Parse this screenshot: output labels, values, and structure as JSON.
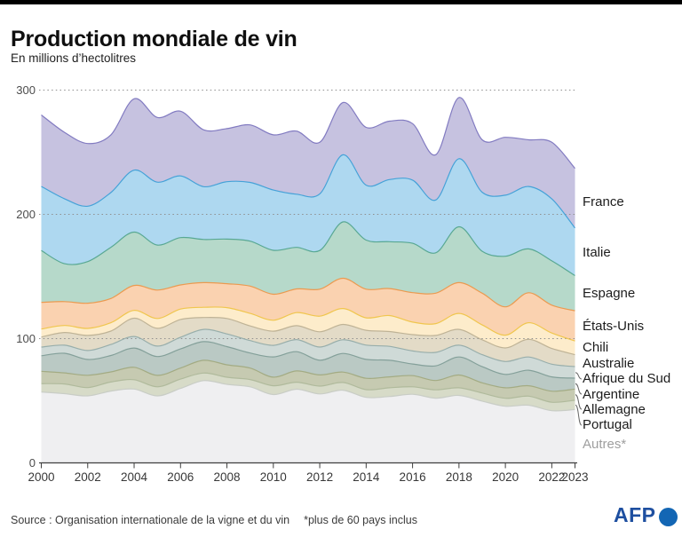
{
  "page": {
    "title": "Production mondiale de vin",
    "subtitle": "En millions d’hectolitres"
  },
  "footer": {
    "source": "Source : Organisation internationale de la vigne et du vin",
    "note": "*plus de 60 pays inclus",
    "brand": "AFP"
  },
  "colors": {
    "afp_text": "#1e4fa0",
    "afp_circle": "#1366b4",
    "grid_dotted": "#8f8f8f",
    "axis": "#3f3f3f",
    "muted_label": "#9e9e9e"
  },
  "chart_data": {
    "type": "area",
    "stacked": true,
    "title": "Production mondiale de vin",
    "ylabel": "En millions d’hectolitres",
    "ylim": [
      0,
      300
    ],
    "yticks": [
      0,
      100,
      200,
      300
    ],
    "grid": "dotted horizontal at 100/200/300",
    "legend_position": "right edge labels",
    "x": [
      2000,
      2001,
      2002,
      2003,
      2004,
      2005,
      2006,
      2007,
      2008,
      2009,
      2010,
      2011,
      2012,
      2013,
      2014,
      2015,
      2016,
      2017,
      2018,
      2019,
      2020,
      2021,
      2022,
      2023
    ],
    "x_tick_labels": [
      2000,
      2002,
      2004,
      2006,
      2008,
      2010,
      2012,
      2014,
      2016,
      2018,
      2020,
      2022,
      2023
    ],
    "series_order_note": "listed top-to-bottom as labeled; stacking is bottom-to-top (reverse)",
    "series": [
      {
        "name": "France",
        "fill": "#c6c2e0",
        "stroke": "#827bc1",
        "values": [
          57.5,
          53.4,
          50.4,
          46.4,
          57.4,
          52.1,
          52.1,
          45.7,
          42.7,
          46.3,
          44.4,
          50.8,
          41.5,
          42.1,
          46.5,
          47.0,
          45.4,
          36.4,
          49.2,
          42.2,
          46.6,
          37.6,
          45.6,
          48.0
        ]
      },
      {
        "name": "Italie",
        "fill": "#aed8f0",
        "stroke": "#45a2d8",
        "values": [
          51.6,
          52.3,
          44.6,
          44.1,
          49.9,
          50.6,
          49.6,
          42.5,
          46.2,
          47.3,
          48.5,
          42.8,
          45.6,
          54.0,
          44.2,
          50.0,
          50.9,
          42.5,
          54.8,
          47.5,
          49.1,
          50.2,
          49.8,
          38.3
        ]
      },
      {
        "name": "Espagne",
        "fill": "#b6d9ca",
        "stroke": "#58a893",
        "values": [
          41.7,
          30.5,
          33.5,
          41.2,
          42.9,
          36.2,
          38.1,
          34.7,
          35.9,
          36.1,
          35.4,
          33.4,
          31.1,
          45.3,
          39.5,
          37.7,
          39.7,
          32.5,
          44.9,
          33.7,
          40.7,
          35.3,
          35.7,
          28.3
        ]
      },
      {
        "name": "États-Unis",
        "fill": "#fad2b0",
        "stroke": "#eb9a50",
        "values": [
          21.5,
          19.2,
          20.3,
          19.5,
          20.1,
          22.9,
          19.4,
          19.9,
          19.3,
          22.0,
          20.9,
          19.1,
          21.7,
          24.4,
          23.1,
          21.7,
          23.7,
          24.5,
          24.8,
          25.6,
          22.8,
          24.1,
          22.4,
          24.3
        ]
      },
      {
        "name": "Chili",
        "fill": "#fdeccb",
        "stroke": "#f0c64e",
        "values": [
          6.4,
          5.7,
          5.6,
          6.7,
          6.3,
          7.9,
          8.4,
          8.2,
          8.7,
          10.1,
          8.8,
          10.5,
          12.6,
          12.8,
          10.0,
          12.9,
          10.1,
          9.5,
          12.9,
          11.9,
          10.3,
          13.4,
          12.4,
          11.0
        ]
      },
      {
        "name": "Australie",
        "fill": "#e3dbc7",
        "stroke": "#bfb396",
        "values": [
          8.1,
          10.2,
          12.2,
          10.8,
          14.7,
          14.3,
          14.3,
          9.6,
          12.4,
          11.8,
          11.4,
          11.2,
          12.3,
          12.3,
          11.9,
          11.9,
          13.1,
          13.7,
          12.7,
          12.0,
          10.9,
          14.2,
          12.7,
          9.6
        ]
      },
      {
        "name": "Afrique du Sud",
        "fill": "#cfdad7",
        "stroke": "#98aeab",
        "values": [
          7.0,
          6.5,
          7.2,
          8.9,
          9.3,
          8.4,
          9.4,
          9.8,
          10.2,
          10.0,
          9.3,
          9.7,
          10.6,
          11.0,
          11.5,
          11.2,
          10.5,
          10.8,
          9.5,
          9.7,
          10.4,
          10.6,
          10.2,
          9.3
        ]
      },
      {
        "name": "Argentine",
        "fill": "#bac9c4",
        "stroke": "#84a09a",
        "values": [
          12.5,
          15.8,
          12.7,
          13.2,
          15.5,
          15.2,
          15.4,
          15.0,
          14.7,
          12.1,
          16.3,
          15.5,
          11.8,
          15.0,
          15.2,
          13.4,
          9.4,
          11.8,
          14.5,
          13.0,
          10.8,
          12.5,
          11.5,
          8.8
        ]
      },
      {
        "name": "Allemagne",
        "fill": "#c6cab1",
        "stroke": "#a3ab83",
        "values": [
          9.9,
          8.9,
          9.9,
          8.1,
          10.0,
          9.2,
          8.9,
          10.3,
          10.0,
          9.2,
          6.9,
          9.1,
          9.0,
          8.4,
          9.2,
          8.8,
          9.0,
          7.5,
          10.3,
          8.2,
          8.4,
          8.4,
          8.9,
          9.0
        ]
      },
      {
        "name": "Portugal",
        "fill": "#d7dbc8",
        "stroke": "#b0ba9c",
        "values": [
          6.7,
          7.8,
          6.7,
          7.3,
          7.5,
          7.3,
          7.5,
          6.1,
          5.7,
          5.9,
          7.1,
          5.6,
          6.3,
          6.2,
          6.2,
          7.0,
          6.0,
          6.7,
          6.1,
          6.5,
          6.4,
          7.3,
          6.8,
          7.5
        ]
      },
      {
        "name": "Autres*",
        "fill": "#efeff1",
        "stroke": "#c9cdc6",
        "values": [
          57.1,
          55.7,
          53.9,
          57.8,
          59.4,
          53.9,
          59.9,
          66.2,
          63.2,
          61.2,
          55.0,
          59.3,
          55.5,
          58.5,
          52.7,
          53.4,
          55.2,
          52.1,
          54.3,
          49.7,
          45.6,
          46.4,
          42.0,
          42.9
        ]
      }
    ]
  }
}
